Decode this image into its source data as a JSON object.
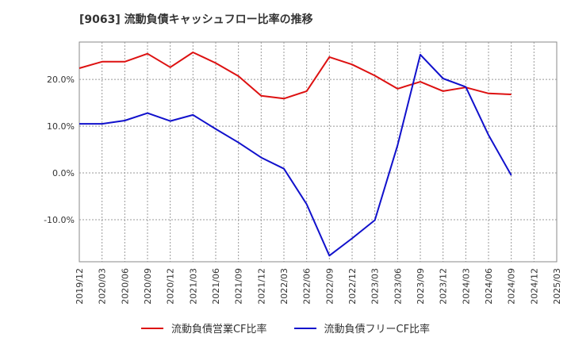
{
  "chart_data": {
    "type": "line",
    "title": "[9063]  流動負債キャッシュフロー比率の推移",
    "xlabel": "",
    "ylabel": "",
    "categories": [
      "2019/12",
      "2020/03",
      "2020/06",
      "2020/09",
      "2020/12",
      "2021/03",
      "2021/06",
      "2021/09",
      "2021/12",
      "2022/03",
      "2022/06",
      "2022/09",
      "2022/12",
      "2023/03",
      "2023/06",
      "2023/09",
      "2023/12",
      "2024/03",
      "2024/06",
      "2024/09",
      "2024/12",
      "2025/03"
    ],
    "ylim": [
      -19,
      28
    ],
    "yticks": [
      -10,
      0,
      10,
      20
    ],
    "ytick_labels": [
      "-10.0%",
      "0.0%",
      "10.0%",
      "20.0%"
    ],
    "grid": true,
    "legend_position": "bottom",
    "series": [
      {
        "name": "流動負債営業CF比率",
        "color": "#dd1111",
        "values": [
          22.4,
          23.8,
          23.8,
          25.5,
          22.6,
          25.8,
          23.5,
          20.7,
          16.5,
          15.9,
          17.5,
          24.8,
          23.2,
          20.8,
          18.0,
          19.5,
          17.5,
          18.3,
          17.0,
          16.8,
          null,
          null
        ]
      },
      {
        "name": "流動負債フリーCF比率",
        "color": "#1111cc",
        "values": [
          10.5,
          10.5,
          11.2,
          12.8,
          11.1,
          12.4,
          9.4,
          6.5,
          3.3,
          0.9,
          -6.7,
          -17.7,
          -14.0,
          -10.1,
          5.9,
          25.3,
          20.2,
          18.4,
          8.1,
          -0.5,
          null,
          null
        ]
      }
    ]
  }
}
